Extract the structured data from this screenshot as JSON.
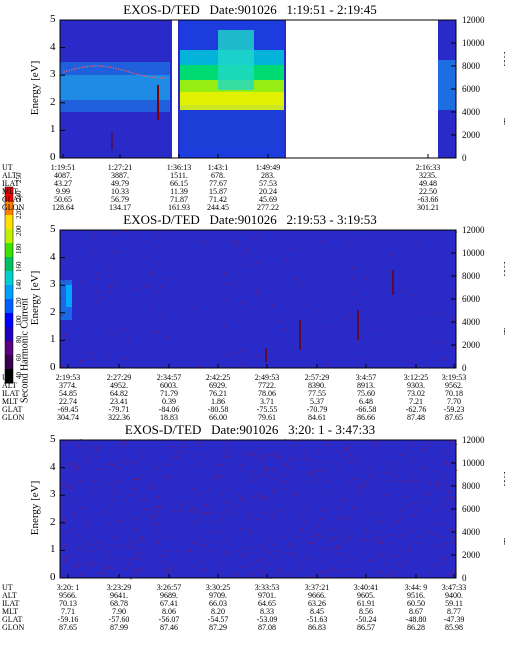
{
  "colorbar": {
    "label": "Second Harmonic Current",
    "ticks": [
      "40",
      "60",
      "80",
      "100",
      "120",
      "140",
      "160",
      "180",
      "200",
      "220",
      "240",
      "250"
    ],
    "colors": [
      "#000000",
      "#3a0050",
      "#5a0080",
      "#2000c0",
      "#0000ff",
      "#0060ff",
      "#00a0ff",
      "#00d0d0",
      "#00c060",
      "#40e000",
      "#c0f000",
      "#ffe000",
      "#ff8000",
      "#ff0000"
    ]
  },
  "panels": [
    {
      "title": "EXOS-D/TED   Date:901026   1:19:51 - 2:19:45",
      "ylabel": "Energy [eV]",
      "y2label": "Temperature [K]",
      "yticks": [
        "5",
        "4",
        "3",
        "2",
        "1",
        "0"
      ],
      "y2ticks": [
        "12000",
        "10000",
        "8000",
        "6000",
        "4000",
        "2000",
        "0"
      ],
      "rows": [
        {
          "label": "UT",
          "values": [
            "1:19:51",
            "1:27:21",
            "1:36:13",
            "1:43:1",
            "1:49:49",
            "2:16:33"
          ]
        },
        {
          "label": "ALT",
          "values": [
            "4087.",
            "3887.",
            "1511.",
            "678.",
            "283.",
            "3235."
          ]
        },
        {
          "label": "ILAT",
          "values": [
            "43.27",
            "49.79",
            "66.15",
            "77.67",
            "57.53",
            "49.48"
          ]
        },
        {
          "label": "MLT",
          "values": [
            "9.99",
            "10.33",
            "11.39",
            "15.87",
            "20.24",
            "22.50"
          ]
        },
        {
          "label": "GLAT",
          "values": [
            "50.65",
            "56.79",
            "71.87",
            "71.42",
            "45.69",
            "-63.66"
          ]
        },
        {
          "label": "GLON",
          "values": [
            "128.64",
            "134.17",
            "161.93",
            "244.45",
            "277.22",
            "301.21"
          ]
        }
      ]
    },
    {
      "title": "EXOS-D/TED   Date:901026   2:19:53 - 3:19:53",
      "ylabel": "Energy [eV]",
      "y2label": "Temperature [K]",
      "yticks": [
        "5",
        "4",
        "3",
        "2",
        "1",
        "0"
      ],
      "y2ticks": [
        "12000",
        "10000",
        "8000",
        "6000",
        "4000",
        "2000",
        "0"
      ],
      "rows": [
        {
          "label": "UT",
          "values": [
            "2:19:53",
            "2:27:29",
            "2:34:57",
            "2:42:25",
            "2:49:53",
            "2:57:29",
            "3:4:57",
            "3:12:25",
            "3:19:53"
          ]
        },
        {
          "label": "ALT",
          "values": [
            "3774.",
            "4952.",
            "6003.",
            "6929.",
            "7722.",
            "8390.",
            "8913.",
            "9303.",
            "9562."
          ]
        },
        {
          "label": "ILAT",
          "values": [
            "54.85",
            "64.82",
            "71.79",
            "76.21",
            "78.06",
            "77.55",
            "75.60",
            "73.02",
            "70.18"
          ]
        },
        {
          "label": "MLT",
          "values": [
            "22.74",
            "23.41",
            "0.39",
            "1.86",
            "3.71",
            "5.37",
            "6.48",
            "7.21",
            "7.70"
          ]
        },
        {
          "label": "GLAT",
          "values": [
            "-69.45",
            "-79.71",
            "-84.06",
            "-80.58",
            "-75.55",
            "-70.79",
            "-66.58",
            "-62.76",
            "-59.23"
          ]
        },
        {
          "label": "GLON",
          "values": [
            "304.74",
            "322.36",
            "18.83",
            "66.00",
            "79.61",
            "84.61",
            "86.66",
            "87.48",
            "87.65"
          ]
        }
      ]
    },
    {
      "title": "EXOS-D/TED   Date:901026   3:20: 1 - 3:47:33",
      "ylabel": "Energy [eV]",
      "y2label": "Temperature [K]",
      "yticks": [
        "5",
        "4",
        "3",
        "2",
        "1",
        "0"
      ],
      "y2ticks": [
        "12000",
        "10000",
        "8000",
        "6000",
        "4000",
        "2000",
        "0"
      ],
      "rows": [
        {
          "label": "UT",
          "values": [
            "3:20: 1",
            "3:23:29",
            "3:26:57",
            "3:30:25",
            "3:33:53",
            "3:37:21",
            "3:40:41",
            "3:44: 9",
            "3:47:33"
          ]
        },
        {
          "label": "ALT",
          "values": [
            "9566.",
            "9641.",
            "9689.",
            "9709.",
            "9701.",
            "9666.",
            "9605.",
            "9516.",
            "9400."
          ]
        },
        {
          "label": "ILAT",
          "values": [
            "70.13",
            "68.78",
            "67.41",
            "66.03",
            "64.65",
            "63.26",
            "61.91",
            "60.50",
            "59.11"
          ]
        },
        {
          "label": "MLT",
          "values": [
            "7.71",
            "7.90",
            "8.06",
            "8.20",
            "8.33",
            "8.45",
            "8.56",
            "8.67",
            "8.77"
          ]
        },
        {
          "label": "GLAT",
          "values": [
            "-59.16",
            "-57.60",
            "-56.07",
            "-54.57",
            "-53.09",
            "-51.63",
            "-50.24",
            "-48.80",
            "-47.39"
          ]
        },
        {
          "label": "GLON",
          "values": [
            "87.65",
            "87.99",
            "87.46",
            "87.29",
            "87.08",
            "86.83",
            "86.57",
            "86.28",
            "85.98"
          ]
        }
      ]
    }
  ],
  "chart_data": [
    {
      "type": "heatmap",
      "title": "EXOS-D/TED   Date:901026   1:19:51 - 2:19:45",
      "ylabel": "Energy [eV]",
      "y2label": "Temperature [K]",
      "ylim": [
        0,
        5
      ],
      "y2lim": [
        0,
        12000
      ],
      "x_ticks": [
        "1:19:51",
        "1:27:21",
        "1:36:13",
        "1:43:1",
        "1:49:49",
        "2:16:33"
      ],
      "colorbar_label": "Second Harmonic Current",
      "colorbar_range": [
        40,
        250
      ],
      "grid": false
    },
    {
      "type": "heatmap",
      "title": "EXOS-D/TED   Date:901026   2:19:53 - 3:19:53",
      "ylabel": "Energy [eV]",
      "y2label": "Temperature [K]",
      "ylim": [
        0,
        5
      ],
      "y2lim": [
        0,
        12000
      ],
      "x_ticks": [
        "2:19:53",
        "2:27:29",
        "2:34:57",
        "2:42:25",
        "2:49:53",
        "2:57:29",
        "3:4:57",
        "3:12:25",
        "3:19:53"
      ],
      "colorbar_label": "Second Harmonic Current",
      "colorbar_range": [
        40,
        250
      ],
      "grid": false
    },
    {
      "type": "heatmap",
      "title": "EXOS-D/TED   Date:901026   3:20: 1 - 3:47:33",
      "ylabel": "Energy [eV]",
      "y2label": "Temperature [K]",
      "ylim": [
        0,
        5
      ],
      "y2lim": [
        0,
        12000
      ],
      "x_ticks": [
        "3:20: 1",
        "3:23:29",
        "3:26:57",
        "3:30:25",
        "3:33:53",
        "3:37:21",
        "3:40:41",
        "3:44: 9",
        "3:47:33"
      ],
      "colorbar_label": "Second Harmonic Current",
      "colorbar_range": [
        40,
        250
      ],
      "grid": false
    }
  ]
}
